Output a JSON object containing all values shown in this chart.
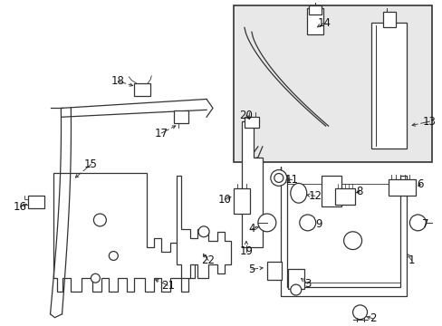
{
  "bg_color": "#ffffff",
  "fig_width": 4.89,
  "fig_height": 3.6,
  "dpi": 100,
  "line_color": "#333333",
  "line_width": 0.9
}
